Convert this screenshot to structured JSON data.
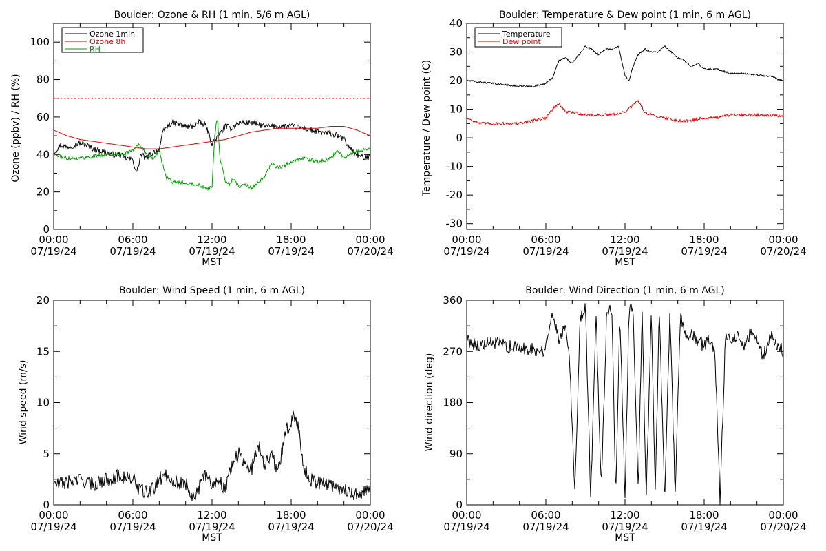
{
  "colors": {
    "black": "#000000",
    "red": "#dd0000",
    "green": "#009900"
  },
  "chart_data": [
    {
      "type": "line",
      "title": "Boulder: Ozone & RH (1 min, 5/6 m AGL)",
      "ylabel": "Ozone (ppbv) / RH (%)",
      "xlabel": "MST",
      "xlim": [
        0,
        24
      ],
      "ylim": [
        0,
        110
      ],
      "yticks": [
        0,
        20,
        40,
        60,
        80,
        100
      ],
      "xticks": [
        {
          "x": 0,
          "time": "00:00",
          "date": "07/19/24"
        },
        {
          "x": 6,
          "time": "06:00",
          "date": "07/19/24"
        },
        {
          "x": 12,
          "time": "12:00",
          "date": "07/19/24"
        },
        {
          "x": 18,
          "time": "18:00",
          "date": "07/19/24"
        },
        {
          "x": 24,
          "time": "00:00",
          "date": "07/20/24"
        }
      ],
      "legend": "top-left",
      "reference_line": {
        "y": 70,
        "color": "#dd0000",
        "style": "dotted"
      },
      "series": [
        {
          "name": "Ozone 1min",
          "color": "#000000",
          "noise": 1.6,
          "x": [
            0,
            0.5,
            1,
            1.5,
            2,
            2.5,
            3,
            3.5,
            4,
            4.5,
            5,
            5.5,
            6,
            6.3,
            6.6,
            7,
            7.5,
            8,
            8.3,
            8.6,
            9,
            9.5,
            10,
            10.5,
            11,
            11.5,
            12,
            12.5,
            13,
            13.5,
            14,
            14.5,
            15,
            16,
            17,
            18,
            19,
            20,
            21,
            21.5,
            22,
            22.5,
            23,
            23.5,
            24
          ],
          "y": [
            41,
            45,
            44,
            45,
            46,
            45,
            43,
            42,
            41,
            40,
            40,
            38,
            37,
            30,
            40,
            38,
            41,
            43,
            52,
            55,
            57,
            56,
            55,
            55,
            57,
            56,
            46,
            50,
            55,
            54,
            57,
            57,
            57,
            55,
            55,
            55,
            54,
            52,
            51,
            50,
            48,
            43,
            40,
            38,
            39
          ]
        },
        {
          "name": "Ozone 8h",
          "color": "#dd0000",
          "noise": 0,
          "x": [
            0,
            1,
            2,
            3,
            4,
            5,
            6,
            7,
            8,
            9,
            10,
            11,
            12,
            13,
            14,
            15,
            16,
            17,
            18,
            19,
            20,
            21,
            22,
            23,
            24
          ],
          "y": [
            53,
            50,
            48,
            47,
            46,
            45,
            44,
            43,
            43,
            44,
            45,
            46,
            47,
            48,
            50,
            52,
            53,
            54,
            54,
            54,
            54,
            55,
            55,
            53,
            50
          ]
        },
        {
          "name": "RH",
          "color": "#009900",
          "noise": 1.0,
          "x": [
            0,
            1,
            2,
            3,
            4,
            5,
            5.5,
            6,
            6.5,
            7,
            7.5,
            8,
            8.5,
            9,
            10,
            11,
            11.5,
            12,
            12.2,
            12.4,
            12.6,
            13,
            13.3,
            13.6,
            14,
            14.5,
            15,
            16,
            16.5,
            17,
            17.5,
            18,
            19,
            20,
            21,
            21.5,
            22,
            23,
            24
          ],
          "y": [
            40,
            38,
            38,
            39,
            40,
            40,
            41,
            42,
            46,
            40,
            38,
            42,
            28,
            25,
            25,
            24,
            22,
            22,
            50,
            60,
            38,
            26,
            24,
            27,
            23,
            24,
            22,
            28,
            35,
            33,
            34,
            36,
            38,
            36,
            38,
            42,
            38,
            42,
            43
          ]
        }
      ]
    },
    {
      "type": "line",
      "title": "Boulder: Temperature & Dew point (1 min, 6 m AGL)",
      "ylabel": "Temperature / Dew point (C)",
      "xlabel": "MST",
      "xlim": [
        0,
        24
      ],
      "ylim": [
        -32,
        40
      ],
      "yticks": [
        -30,
        -20,
        -10,
        0,
        10,
        20,
        30,
        40
      ],
      "xticks": [
        {
          "x": 0,
          "time": "00:00",
          "date": "07/19/24"
        },
        {
          "x": 6,
          "time": "06:00",
          "date": "07/19/24"
        },
        {
          "x": 12,
          "time": "12:00",
          "date": "07/19/24"
        },
        {
          "x": 18,
          "time": "18:00",
          "date": "07/19/24"
        },
        {
          "x": 24,
          "time": "00:00",
          "date": "07/20/24"
        }
      ],
      "legend": "top-left",
      "series": [
        {
          "name": "Temperature",
          "color": "#000000",
          "noise": 0.3,
          "x": [
            0,
            1,
            2,
            3,
            4,
            5,
            6,
            6.5,
            7,
            7.5,
            8,
            8.5,
            9,
            9.5,
            10,
            10.5,
            11,
            11.5,
            12,
            12.3,
            12.6,
            13,
            13.5,
            14,
            14.5,
            15,
            15.5,
            16,
            16.5,
            17,
            17.5,
            18,
            19,
            20,
            21,
            22,
            23,
            24
          ],
          "y": [
            20,
            19.5,
            19,
            18.5,
            18,
            18,
            19,
            21,
            27,
            28,
            26,
            29,
            32,
            31,
            29,
            31,
            31,
            32,
            22,
            20,
            25,
            29,
            31,
            30,
            30,
            32,
            30,
            28,
            27,
            25,
            26,
            24,
            24,
            22.5,
            22.5,
            22,
            21.5,
            20
          ]
        },
        {
          "name": "Dew point",
          "color": "#dd0000",
          "noise": 0.5,
          "x": [
            0,
            1,
            2,
            3,
            4,
            5,
            6,
            6.5,
            7,
            7.5,
            8,
            9,
            10,
            11,
            12,
            12.5,
            13,
            13.5,
            14,
            15,
            16,
            17,
            18,
            19,
            20,
            21,
            22,
            23,
            24
          ],
          "y": [
            7,
            5,
            5,
            5,
            5,
            6,
            7,
            10,
            12,
            9,
            9,
            8,
            8,
            8,
            9,
            11,
            13,
            9,
            8,
            7,
            6,
            6,
            7,
            7,
            8,
            8,
            8,
            8,
            7.5
          ]
        }
      ]
    },
    {
      "type": "line",
      "title": "Boulder: Wind Speed (1 min, 6 m AGL)",
      "ylabel": "Wind speed (m/s)",
      "xlabel": "MST",
      "xlim": [
        0,
        24
      ],
      "ylim": [
        0,
        20
      ],
      "yticks": [
        0,
        5,
        10,
        15,
        20
      ],
      "xticks": [
        {
          "x": 0,
          "time": "00:00",
          "date": "07/19/24"
        },
        {
          "x": 6,
          "time": "06:00",
          "date": "07/19/24"
        },
        {
          "x": 12,
          "time": "12:00",
          "date": "07/19/24"
        },
        {
          "x": 18,
          "time": "18:00",
          "date": "07/19/24"
        },
        {
          "x": 24,
          "time": "00:00",
          "date": "07/20/24"
        }
      ],
      "series": [
        {
          "name": "",
          "color": "#000000",
          "noise": 0.7,
          "x": [
            0,
            1,
            2,
            3,
            4,
            5,
            6,
            6.5,
            7,
            7.5,
            8,
            8.5,
            9,
            9.5,
            10,
            10.5,
            11,
            11.5,
            12,
            12.5,
            13,
            13.5,
            14,
            14.5,
            15,
            15.5,
            16,
            16.5,
            17,
            17.5,
            18,
            18.3,
            18.6,
            19,
            19.5,
            20,
            21,
            22,
            23,
            24
          ],
          "y": [
            2,
            2.2,
            2.5,
            2,
            2.5,
            2.8,
            2.5,
            1.5,
            1.2,
            1.5,
            2.5,
            3,
            2.5,
            2,
            2.2,
            0.8,
            1.5,
            3,
            2,
            2.5,
            1.5,
            4,
            5,
            4,
            3.5,
            6,
            4,
            5,
            3,
            7,
            8,
            9,
            7,
            3.5,
            2.5,
            2.2,
            2,
            1.5,
            1,
            1.5
          ]
        }
      ]
    },
    {
      "type": "line",
      "title": "Boulder: Wind Direction (1 min, 6 m AGL)",
      "ylabel": "Wind direction (deg)",
      "xlabel": "MST",
      "xlim": [
        0,
        24
      ],
      "ylim": [
        0,
        360
      ],
      "yticks": [
        0,
        90,
        180,
        270,
        360
      ],
      "xticks": [
        {
          "x": 0,
          "time": "00:00",
          "date": "07/19/24"
        },
        {
          "x": 6,
          "time": "06:00",
          "date": "07/19/24"
        },
        {
          "x": 12,
          "time": "12:00",
          "date": "07/19/24"
        },
        {
          "x": 18,
          "time": "18:00",
          "date": "07/19/24"
        },
        {
          "x": 24,
          "time": "00:00",
          "date": "07/20/24"
        }
      ],
      "series": [
        {
          "name": "",
          "color": "#000000",
          "noise": 12,
          "x": [
            0,
            1,
            2,
            3,
            4,
            5,
            5.8,
            6.2,
            6.5,
            7,
            7.5,
            7.8,
            8.2,
            8.6,
            9,
            9.4,
            9.8,
            10.2,
            10.6,
            11,
            11.3,
            11.6,
            12,
            12.3,
            12.6,
            13,
            13.3,
            13.6,
            14,
            14.3,
            14.6,
            15,
            15.4,
            15.8,
            16.2,
            16.6,
            17,
            17.5,
            18,
            18.4,
            18.8,
            19.2,
            19.6,
            20,
            20.5,
            21,
            21.5,
            22,
            22.5,
            23,
            23.5,
            24
          ],
          "y": [
            290,
            280,
            285,
            280,
            275,
            275,
            270,
            300,
            340,
            290,
            320,
            260,
            20,
            330,
            350,
            10,
            340,
            20,
            330,
            350,
            20,
            340,
            15,
            340,
            350,
            20,
            350,
            10,
            340,
            20,
            350,
            10,
            340,
            20,
            330,
            290,
            300,
            290,
            280,
            290,
            275,
            10,
            290,
            290,
            300,
            280,
            300,
            290,
            260,
            300,
            280,
            270
          ]
        }
      ]
    }
  ]
}
